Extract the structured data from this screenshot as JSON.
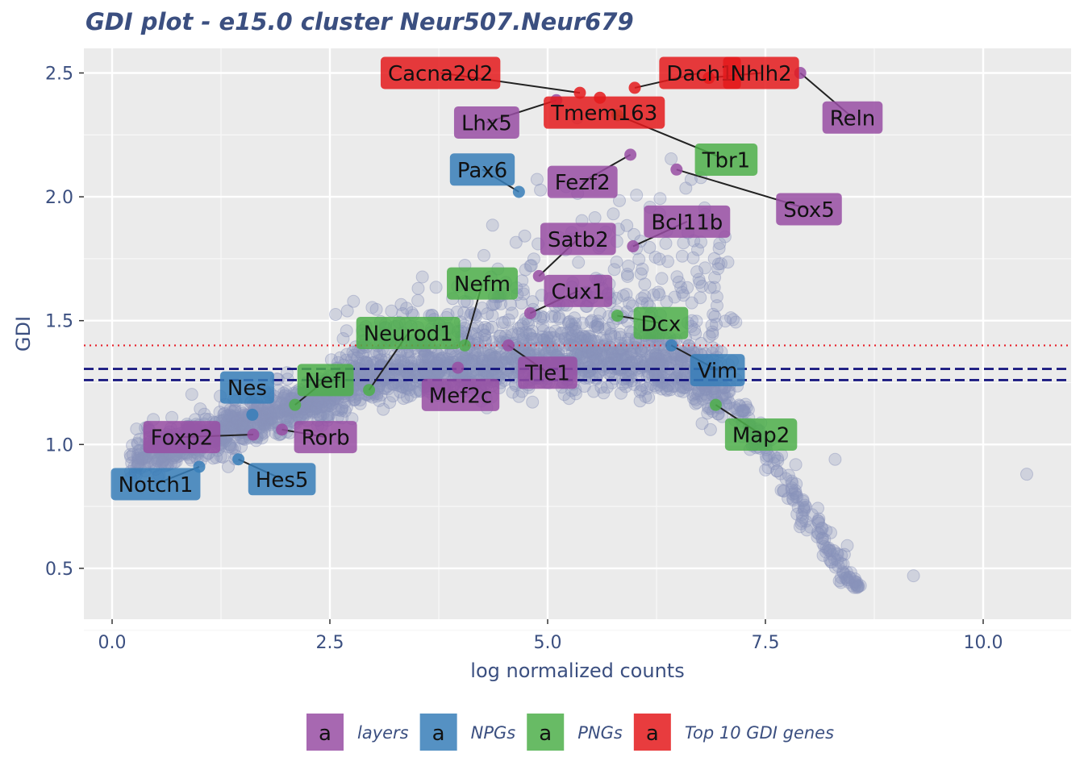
{
  "chart_data": {
    "type": "scatter",
    "title": "GDI plot - e15.0 cluster Neur507.Neur679",
    "xlabel": "log normalized counts",
    "ylabel": "GDI",
    "xlim": [
      -0.13,
      11.0
    ],
    "ylim": [
      0.3,
      2.6
    ],
    "x_ticks": [
      0.0,
      2.5,
      5.0,
      7.5,
      10.0
    ],
    "x_tick_labels": [
      "0.0",
      "2.5",
      "5.0",
      "7.5",
      "10.0"
    ],
    "y_ticks": [
      0.5,
      1.0,
      1.5,
      2.0,
      2.5
    ],
    "y_tick_labels": [
      "0.5",
      "1.0",
      "1.5",
      "2.0",
      "2.5"
    ],
    "grid": true,
    "background": "#ebebeb",
    "background_point_color": "#8a93bb",
    "reference_lines": [
      {
        "y": 1.4,
        "style": "dotted",
        "color": "#e8202a"
      },
      {
        "y": 1.305,
        "style": "dashed",
        "color": "#0c0c7a"
      },
      {
        "y": 1.26,
        "style": "dashed",
        "color": "#0c0c7a"
      }
    ],
    "groups": [
      {
        "name": "layers",
        "color": "#984ea3"
      },
      {
        "name": "NPGs",
        "color": "#377eb8"
      },
      {
        "name": "PNGs",
        "color": "#4daf4a"
      },
      {
        "name": "Top 10 GDI genes",
        "color": "#e41a1c"
      }
    ],
    "legend_placement": "bottom",
    "legend_glyph": "a",
    "labeled_genes": [
      {
        "gene": "Cacna2d2",
        "group": "Top 10 GDI genes",
        "x": 5.37,
        "y": 2.42,
        "lx": 3.77,
        "ly": 2.5
      },
      {
        "gene": "Dach1",
        "group": "Top 10 GDI genes",
        "x": 6.0,
        "y": 2.44,
        "lx": 6.75,
        "ly": 2.5
      },
      {
        "gene": "Nhlh2",
        "group": "Top 10 GDI genes",
        "x": 6.85,
        "y": 2.48,
        "lx": 7.45,
        "ly": 2.5
      },
      {
        "gene": "Tmem163",
        "group": "Top 10 GDI genes",
        "x": 5.6,
        "y": 2.4,
        "lx": 5.65,
        "ly": 2.34
      },
      {
        "gene": "Reln",
        "group": "layers",
        "x": 7.9,
        "y": 2.5,
        "lx": 8.5,
        "ly": 2.32
      },
      {
        "gene": "Lhx5",
        "group": "layers",
        "x": 5.1,
        "y": 2.39,
        "lx": 4.3,
        "ly": 2.3
      },
      {
        "gene": "Tbr1",
        "group": "PNGs",
        "x": 5.8,
        "y": 2.33,
        "lx": 7.05,
        "ly": 2.15
      },
      {
        "gene": "Sox5",
        "group": "layers",
        "x": 6.48,
        "y": 2.11,
        "lx": 8.0,
        "ly": 1.95
      },
      {
        "gene": "Pax6",
        "group": "NPGs",
        "x": 4.67,
        "y": 2.02,
        "lx": 4.25,
        "ly": 2.11
      },
      {
        "gene": "Fezf2",
        "group": "layers",
        "x": 5.95,
        "y": 2.17,
        "lx": 5.4,
        "ly": 2.06
      },
      {
        "gene": "Bcl11b",
        "group": "layers",
        "x": 5.98,
        "y": 1.8,
        "lx": 6.6,
        "ly": 1.9
      },
      {
        "gene": "Satb2",
        "group": "layers",
        "x": 4.9,
        "y": 1.68,
        "lx": 5.35,
        "ly": 1.83
      },
      {
        "gene": "Nefm",
        "group": "PNGs",
        "x": 4.05,
        "y": 1.4,
        "lx": 4.25,
        "ly": 1.65
      },
      {
        "gene": "Cux1",
        "group": "layers",
        "x": 4.8,
        "y": 1.53,
        "lx": 5.35,
        "ly": 1.62
      },
      {
        "gene": "Dcx",
        "group": "PNGs",
        "x": 5.8,
        "y": 1.52,
        "lx": 6.3,
        "ly": 1.49
      },
      {
        "gene": "Neurod1",
        "group": "PNGs",
        "x": 2.95,
        "y": 1.22,
        "lx": 3.4,
        "ly": 1.45
      },
      {
        "gene": "Tle1",
        "group": "layers",
        "x": 4.55,
        "y": 1.4,
        "lx": 5.0,
        "ly": 1.29
      },
      {
        "gene": "Vim",
        "group": "NPGs",
        "x": 6.42,
        "y": 1.4,
        "lx": 6.95,
        "ly": 1.3
      },
      {
        "gene": "Nes",
        "group": "NPGs",
        "x": 1.61,
        "y": 1.12,
        "lx": 1.55,
        "ly": 1.23
      },
      {
        "gene": "Nefl",
        "group": "PNGs",
        "x": 2.1,
        "y": 1.16,
        "lx": 2.45,
        "ly": 1.26
      },
      {
        "gene": "Mef2c",
        "group": "layers",
        "x": 3.97,
        "y": 1.31,
        "lx": 4.0,
        "ly": 1.2
      },
      {
        "gene": "Map2",
        "group": "PNGs",
        "x": 6.93,
        "y": 1.16,
        "lx": 7.45,
        "ly": 1.04
      },
      {
        "gene": "Foxp2",
        "group": "layers",
        "x": 1.62,
        "y": 1.04,
        "lx": 0.8,
        "ly": 1.03
      },
      {
        "gene": "Rorb",
        "group": "layers",
        "x": 1.95,
        "y": 1.06,
        "lx": 2.45,
        "ly": 1.03
      },
      {
        "gene": "Notch1",
        "group": "NPGs",
        "x": 1.0,
        "y": 0.91,
        "lx": 0.5,
        "ly": 0.84
      },
      {
        "gene": "Hes5",
        "group": "NPGs",
        "x": 1.45,
        "y": 0.94,
        "lx": 1.95,
        "ly": 0.86
      }
    ]
  }
}
